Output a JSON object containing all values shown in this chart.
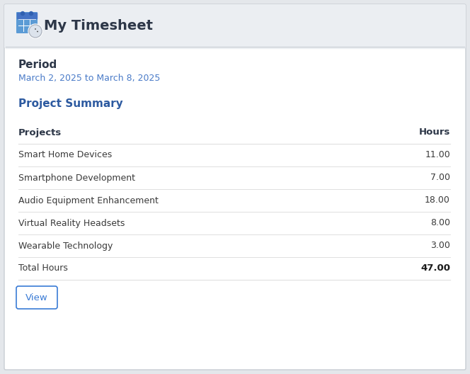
{
  "title": "My Timesheet",
  "period_label": "Period",
  "period_value": "March 2, 2025 to March 8, 2025",
  "section_title": "Project Summary",
  "col_headers": [
    "Projects",
    "Hours"
  ],
  "projects": [
    [
      "Smart Home Devices",
      "11.00"
    ],
    [
      "Smartphone Development",
      "7.00"
    ],
    [
      "Audio Equipment Enhancement",
      "18.00"
    ],
    [
      "Virtual Reality Headsets",
      "8.00"
    ],
    [
      "Wearable Technology",
      "3.00"
    ]
  ],
  "total_label": "Total Hours",
  "total_value": "47.00",
  "button_label": "View",
  "header_bg": "#ebeef2",
  "body_bg": "#ffffff",
  "outer_bg": "#e4e7eb",
  "border_color": "#c8cdd3",
  "title_color": "#2d3748",
  "period_label_color": "#2d3748",
  "period_value_color": "#4a7bc8",
  "section_title_color": "#2d5aa0",
  "header_col_color": "#2d3748",
  "row_text_color": "#3a3a3a",
  "total_label_color": "#3a3a3a",
  "total_value_color": "#1a1a1a",
  "button_text_color": "#3a7bd5",
  "button_border_color": "#3a7bd5",
  "line_color": "#e0e0e0",
  "fig_w": 6.64,
  "fig_h": 5.28,
  "dpi": 100
}
